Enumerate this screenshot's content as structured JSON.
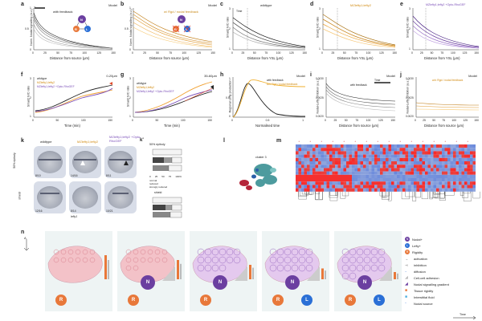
{
  "panels": {
    "a": {
      "letter": "a",
      "model": "Model",
      "legend": "with feedback",
      "ylabel": "Norm. Nodal signalling (a.u.)",
      "xlabel": "Distance from source (μm)",
      "xticks": [
        "0",
        "25",
        "50",
        "75",
        "100",
        "125",
        "150"
      ],
      "yticks": [
        "0",
        "0.5",
        "1"
      ],
      "time_label": "Time",
      "nodes": {
        "N": "N",
        "R": "R",
        "L": "L"
      }
    },
    "b": {
      "letter": "b",
      "model": "Model",
      "legend": "w/ Rgd / nodal feedback",
      "ylabel": "Norm. Nodal signalling (a.u.)",
      "xlabel": "Distance from source (μm)",
      "xticks": [
        "0",
        "25",
        "50",
        "75",
        "100",
        "125",
        "150"
      ],
      "yticks": [
        "0",
        "0.5",
        "1"
      ],
      "nodes": {
        "N": "N",
        "R": "R",
        "L": "L"
      }
    },
    "c": {
      "letter": "c",
      "title": "wildtype",
      "ylabel": "Smad2 N/C ratio",
      "xlabel": "Distance from YSL (μm)",
      "xticks": [
        "0",
        "25",
        "50",
        "75",
        "100",
        "125",
        "150"
      ],
      "yticks": [
        "1",
        "2",
        "3"
      ],
      "annot": "Time"
    },
    "d": {
      "letter": "d",
      "title": "MZlefty1;lefty2",
      "ylabel": "Smad2 N/C ratio",
      "xlabel": "Distance from YSL (μm)",
      "xticks": [
        "0",
        "25",
        "50",
        "75",
        "100",
        "125",
        "150"
      ],
      "yticks": [
        "1",
        "2",
        "3"
      ]
    },
    "e": {
      "letter": "e",
      "title": "MZlefty1;lefty2 +Opto-RhoGEF",
      "ylabel": "Smad2 N/C ratio",
      "xlabel": "Distance from YSL (μm)",
      "xticks": [
        "0",
        "25",
        "50",
        "75",
        "100",
        "125",
        "150"
      ],
      "yticks": [
        "1",
        "2",
        "3"
      ]
    },
    "f": {
      "letter": "f",
      "legend": [
        "wildtype",
        "MZlefty1;lefty2",
        "MZlefty1;lefty2 +Opto-RhoGEF"
      ],
      "range_label": "0-20μm",
      "ylabel": "Smad2 N/C ratio",
      "xlabel": "Time (min)",
      "xticks": [
        "0",
        "50",
        "100",
        "150"
      ],
      "yticks": [
        "1",
        "2",
        "3"
      ]
    },
    "g": {
      "letter": "g",
      "legend": [
        "wildtype",
        "MZlefty1;lefty2",
        "MZlefty1;lefty2 +Opto-RhoGEF"
      ],
      "range_label": "35-60μm",
      "ylabel": "Smad2 N/C ratio",
      "xlabel": "Time (min)",
      "xticks": [
        "0",
        "50",
        "100",
        "150"
      ],
      "yticks": [
        "1",
        "2",
        "3"
      ]
    },
    "h": {
      "letter": "h",
      "model": "Model",
      "legend": [
        "with feedback",
        "w/o Rgd / nodal feedback"
      ],
      "ylabel": "Regional Lefty production",
      "xlabel": "Normalised time",
      "xticks": [
        "0",
        "0.5",
        "1"
      ],
      "yticks": [
        "0",
        "0.5",
        "1"
      ]
    },
    "i": {
      "letter": "i",
      "model": "Model",
      "legend": "with feedback",
      "ylabel": "Nodal-Lefty inhibition (a.u.)",
      "xlabel": "Distance from source (μm)",
      "xticks": [
        "0",
        "25",
        "50",
        "75",
        "100",
        "125",
        "150"
      ],
      "yticks": [
        "0.0020",
        "0.0025",
        "0.0030"
      ],
      "time_label": "Time"
    },
    "j": {
      "letter": "j",
      "model": "Model",
      "legend": "w/o Rgd / nodal feedback",
      "ylabel": "Nodal-Lefty inhibition (a.u.)",
      "xlabel": "Distance from source (μm)",
      "xticks": [
        "0",
        "25",
        "50",
        "75",
        "100",
        "125",
        "150"
      ],
      "yticks": [
        "0.0020",
        "0.0025",
        "0.0030"
      ]
    },
    "k": {
      "letter": "k",
      "cols": [
        "wildtype",
        "MZlefty1;lefty2",
        "MZlefty1;lefty2 +Opto-RhoGEF"
      ],
      "rows": [
        "50% epiboly",
        "shield"
      ],
      "counts_top": [
        "8/10",
        "14/16",
        "8/11"
      ],
      "counts_bot": [
        "12/16",
        "8/14",
        "10/21"
      ],
      "gene": "lefty1"
    },
    "k2": {
      "letter": "k'",
      "top_title": "50% epiboly",
      "bot_title": "shield",
      "legend": [
        "normal",
        "reduced",
        "strongly reduced"
      ],
      "xticks": [
        "0",
        "25",
        "50",
        "75",
        "100%"
      ],
      "rows": [
        "wildtype",
        "MZlefty1;lefty2",
        "+Opto-RhoGEF"
      ]
    },
    "l": {
      "letter": "l",
      "cluster_label": "cluster 3"
    },
    "m": {
      "letter": "m"
    },
    "n": {
      "letter": "n",
      "axis_label": "A",
      "legend": [
        {
          "sym": "N",
          "text": "Nodal+"
        },
        {
          "sym": "L",
          "text": "Lefty+"
        },
        {
          "sym": "R",
          "text": "Rigidity"
        },
        {
          "sym": "→",
          "text": "activation"
        },
        {
          "sym": "⊣",
          "text": "inhibition"
        },
        {
          "sym": "~",
          "text": "diffusion"
        },
        {
          "sym": "◢",
          "text": "Cell-cell adhesion"
        },
        {
          "sym": "◢",
          "text": "Nodal signalling gradient"
        },
        {
          "sym": "■",
          "text": "Tissue rigidity"
        },
        {
          "sym": "■",
          "text": "Interstitial fluid"
        },
        {
          "sym": "◦",
          "text": "Nodal source"
        }
      ],
      "time_label": "Time",
      "stage_nodes": [
        [
          "R"
        ],
        [
          "N",
          "R"
        ],
        [
          "N",
          "R"
        ],
        [
          "N",
          "R",
          "L"
        ],
        [
          "N",
          "R",
          "L"
        ]
      ]
    }
  },
  "colors": {
    "gray": "#777777",
    "orange": "#f0a030",
    "purple": "#7b4fb8",
    "blue": "#2a6fd6",
    "red_node": "#e8783a",
    "nodal": "#6b3fa0"
  }
}
